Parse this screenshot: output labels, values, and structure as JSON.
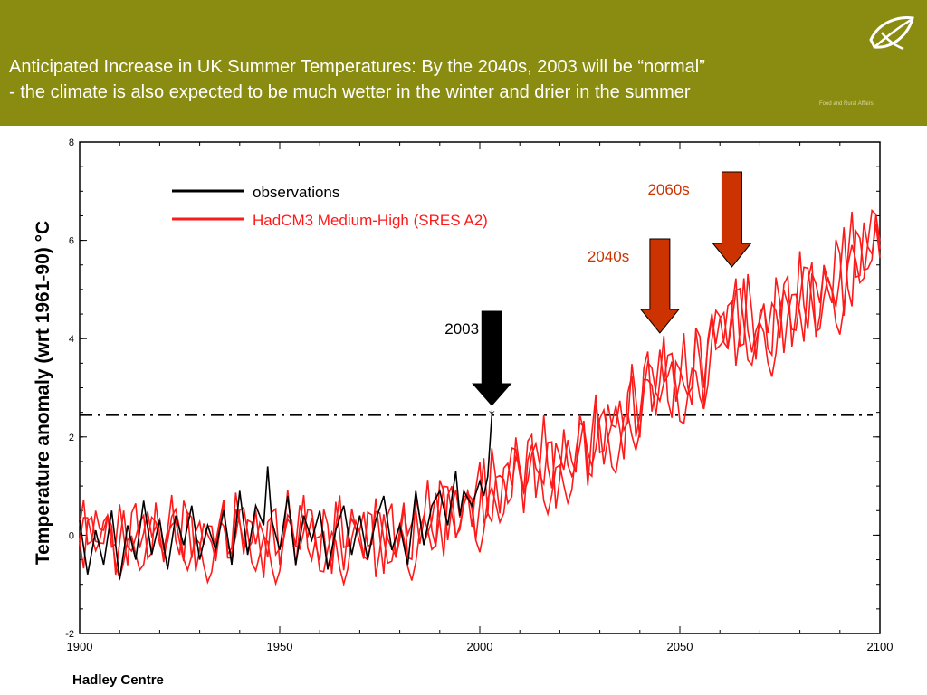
{
  "header": {
    "title_line1": "Anticipated Increase in UK Summer Temperatures: By the 2040s, 2003 will be “normal”",
    "title_line2": "- the climate is also expected to be much wetter in the winter and drier in the summer",
    "logo_caption": "Food and Rural Affairs",
    "background": "#8a8c12",
    "logo_icon": "leaf-logo-icon"
  },
  "footer": {
    "source": "Hadley Centre"
  },
  "chart_data": {
    "type": "line",
    "title": "",
    "xlabel": "",
    "ylabel": "Temperature anomaly (wrt 1961-90)  °C",
    "xlim": [
      1900,
      2100
    ],
    "ylim": [
      -2,
      8
    ],
    "xticks": [
      "1900",
      "1950",
      "2000",
      "2050",
      "2100"
    ],
    "yticks": [
      "-2",
      "0",
      "2",
      "4",
      "6",
      "8"
    ],
    "legend": {
      "position": "top-left",
      "entries": [
        "observations",
        "HadCM3 Medium-High (SRES A2)"
      ]
    },
    "threshold": 2.45,
    "series": [
      {
        "name": "observations",
        "color": "#000000",
        "x": [
          1900,
          1902,
          1904,
          1906,
          1908,
          1910,
          1912,
          1914,
          1916,
          1918,
          1920,
          1922,
          1924,
          1926,
          1928,
          1930,
          1932,
          1934,
          1936,
          1938,
          1940,
          1942,
          1944,
          1946,
          1947,
          1948,
          1950,
          1952,
          1954,
          1956,
          1958,
          1960,
          1962,
          1964,
          1966,
          1968,
          1970,
          1972,
          1974,
          1976,
          1978,
          1980,
          1982,
          1984,
          1986,
          1988,
          1990,
          1992,
          1994,
          1995,
          1996,
          1998,
          2000,
          2001,
          2002,
          2003
        ],
        "y": [
          0.3,
          -0.8,
          0.1,
          -0.6,
          0.5,
          -0.9,
          0.2,
          -0.5,
          0.7,
          -0.4,
          0.3,
          -0.7,
          0.4,
          -0.2,
          0.6,
          -0.5,
          0.2,
          -0.3,
          0.5,
          -0.6,
          0.9,
          -0.4,
          0.6,
          0.2,
          1.4,
          0.3,
          -0.3,
          0.8,
          -0.6,
          0.4,
          -0.1,
          0.5,
          -0.7,
          0.1,
          0.6,
          -0.4,
          0.4,
          -0.5,
          0.3,
          0.8,
          -0.3,
          0.2,
          -0.6,
          0.9,
          -0.2,
          0.6,
          0.9,
          0.2,
          1.3,
          0.4,
          0.9,
          0.6,
          1.1,
          0.8,
          1.2,
          2.45
        ]
      },
      {
        "name": "HadCM3 Medium-High (SRES A2)",
        "color": "#ff1a1a",
        "x": [
          1900,
          1905,
          1910,
          1915,
          1920,
          1925,
          1930,
          1935,
          1940,
          1945,
          1950,
          1955,
          1960,
          1965,
          1970,
          1975,
          1980,
          1985,
          1990,
          1995,
          2000,
          2005,
          2010,
          2015,
          2020,
          2025,
          2030,
          2035,
          2040,
          2045,
          2050,
          2055,
          2060,
          2065,
          2070,
          2075,
          2080,
          2085,
          2090,
          2095,
          2100
        ],
        "y": [
          0.1,
          0.2,
          0.0,
          0.2,
          0.1,
          0.2,
          0.0,
          0.1,
          0.2,
          0.0,
          0.1,
          0.3,
          -0.1,
          0.1,
          0.2,
          0.0,
          0.1,
          0.3,
          0.5,
          0.6,
          0.8,
          1.1,
          1.4,
          1.6,
          1.5,
          1.8,
          2.1,
          2.4,
          2.9,
          3.3,
          3.2,
          3.6,
          4.3,
          4.5,
          4.3,
          4.6,
          4.8,
          5.0,
          5.4,
          5.8,
          6.0
        ]
      }
    ],
    "annotations": [
      {
        "label": "2003",
        "x": 2003,
        "arrow_color": "#000000",
        "label_color": "#000000"
      },
      {
        "label": "2040s",
        "x": 2045,
        "arrow_color": "#cc3300",
        "label_color": "#cc3300"
      },
      {
        "label": "2060s",
        "x": 2063,
        "arrow_color": "#cc3300",
        "label_color": "#cc3300"
      }
    ]
  }
}
